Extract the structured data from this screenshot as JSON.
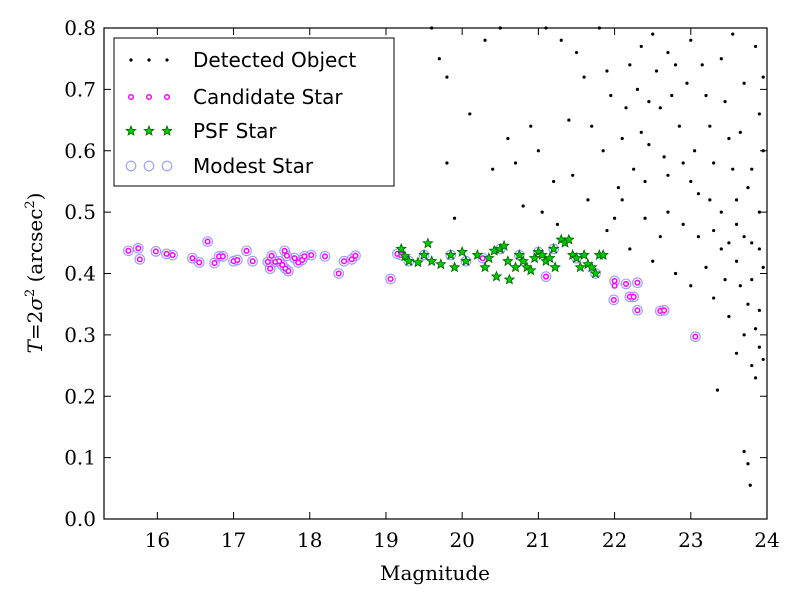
{
  "chart_data": {
    "type": "scatter",
    "xlabel": "Magnitude",
    "ylabel": "T = 2σ² (arcsec²)",
    "ylabel_parts": {
      "var": "T",
      "eq": "=2",
      "sigma": "σ",
      "sup": "2",
      "unit": " (arcsec",
      "unit_sup": "2",
      "close": ")"
    },
    "xlim": [
      15.3,
      24
    ],
    "ylim": [
      0.0,
      0.8
    ],
    "xticks": [
      16,
      17,
      18,
      19,
      20,
      21,
      22,
      23,
      24
    ],
    "yticks": [
      0.0,
      0.1,
      0.2,
      0.3,
      0.4,
      0.5,
      0.6,
      0.7,
      0.8
    ],
    "xtick_labels": [
      "16",
      "17",
      "18",
      "19",
      "20",
      "21",
      "22",
      "23",
      "24"
    ],
    "ytick_labels": [
      "0.0",
      "0.1",
      "0.2",
      "0.3",
      "0.4",
      "0.5",
      "0.6",
      "0.7",
      "0.8"
    ],
    "grid": false,
    "legend_position": "top-left",
    "colors": {
      "detected": "#000000",
      "candidate_edge": "#ff00ff",
      "psf_fill": "#00cc00",
      "psf_edge": "#006400",
      "modest_edge": "#9999ff"
    },
    "series": [
      {
        "name": "Detected Object",
        "marker": "dot",
        "generated_description": "Dense cloud of faint objects",
        "points": [
          [
            19.7,
            0.75
          ],
          [
            19.8,
            0.72
          ],
          [
            20.5,
            0.8
          ],
          [
            20.6,
            0.62
          ],
          [
            20.9,
            0.64
          ],
          [
            21.1,
            0.8
          ],
          [
            21.3,
            0.78
          ],
          [
            21.5,
            0.76
          ],
          [
            21.0,
            0.6
          ],
          [
            20.7,
            0.58
          ],
          [
            21.4,
            0.65
          ],
          [
            21.6,
            0.72
          ],
          [
            21.2,
            0.55
          ],
          [
            20.8,
            0.51
          ],
          [
            21.8,
            0.8
          ],
          [
            21.9,
            0.73
          ],
          [
            22.1,
            0.62
          ],
          [
            22.3,
            0.7
          ],
          [
            22.5,
            0.79
          ],
          [
            22.4,
            0.55
          ],
          [
            22.0,
            0.49
          ],
          [
            22.6,
            0.67
          ],
          [
            22.8,
            0.74
          ],
          [
            23.0,
            0.78
          ],
          [
            23.2,
            0.69
          ],
          [
            23.4,
            0.75
          ],
          [
            23.5,
            0.62
          ],
          [
            23.7,
            0.71
          ],
          [
            23.9,
            0.66
          ],
          [
            22.7,
            0.5
          ],
          [
            22.9,
            0.58
          ],
          [
            23.1,
            0.53
          ],
          [
            23.3,
            0.47
          ],
          [
            23.6,
            0.52
          ],
          [
            23.8,
            0.45
          ],
          [
            23.95,
            0.41
          ],
          [
            22.2,
            0.44
          ],
          [
            22.5,
            0.42
          ],
          [
            22.8,
            0.4
          ],
          [
            23.0,
            0.38
          ],
          [
            23.3,
            0.36
          ],
          [
            23.5,
            0.33
          ],
          [
            23.7,
            0.3
          ],
          [
            23.9,
            0.28
          ],
          [
            23.85,
            0.23
          ],
          [
            23.75,
            0.35
          ],
          [
            23.6,
            0.42
          ],
          [
            23.4,
            0.44
          ],
          [
            23.2,
            0.41
          ],
          [
            23.9,
            0.5
          ],
          [
            23.8,
            0.57
          ],
          [
            23.65,
            0.63
          ],
          [
            23.45,
            0.68
          ],
          [
            23.25,
            0.64
          ],
          [
            23.05,
            0.6
          ],
          [
            22.85,
            0.64
          ],
          [
            22.65,
            0.59
          ],
          [
            22.45,
            0.61
          ],
          [
            22.25,
            0.57
          ],
          [
            22.05,
            0.54
          ],
          [
            21.85,
            0.6
          ],
          [
            21.65,
            0.52
          ],
          [
            21.45,
            0.56
          ],
          [
            21.25,
            0.48
          ],
          [
            21.05,
            0.5
          ],
          [
            23.35,
            0.21
          ],
          [
            23.7,
            0.11
          ],
          [
            23.75,
            0.09
          ],
          [
            23.78,
            0.055
          ],
          [
            19.8,
            0.58
          ],
          [
            19.9,
            0.49
          ],
          [
            20.4,
            0.57
          ],
          [
            19.6,
            0.8
          ],
          [
            20.3,
            0.78
          ],
          [
            20.1,
            0.66
          ],
          [
            22.35,
            0.77
          ],
          [
            22.55,
            0.73
          ],
          [
            22.75,
            0.69
          ],
          [
            22.95,
            0.71
          ],
          [
            23.15,
            0.74
          ],
          [
            23.55,
            0.79
          ],
          [
            23.85,
            0.77
          ],
          [
            23.95,
            0.72
          ],
          [
            22.15,
            0.67
          ],
          [
            22.35,
            0.63
          ],
          [
            22.6,
            0.46
          ],
          [
            22.9,
            0.48
          ],
          [
            23.1,
            0.46
          ],
          [
            23.4,
            0.5
          ],
          [
            23.6,
            0.48
          ],
          [
            23.8,
            0.39
          ],
          [
            23.9,
            0.34
          ],
          [
            23.65,
            0.38
          ],
          [
            23.45,
            0.39
          ],
          [
            23.55,
            0.57
          ],
          [
            23.75,
            0.54
          ],
          [
            23.95,
            0.6
          ],
          [
            23.3,
            0.58
          ],
          [
            23.0,
            0.55
          ],
          [
            22.7,
            0.56
          ],
          [
            22.4,
            0.49
          ],
          [
            22.1,
            0.52
          ],
          [
            21.9,
            0.47
          ],
          [
            21.7,
            0.64
          ],
          [
            21.95,
            0.69
          ],
          [
            22.2,
            0.74
          ],
          [
            22.45,
            0.68
          ],
          [
            22.7,
            0.76
          ],
          [
            23.25,
            0.52
          ],
          [
            23.5,
            0.45
          ],
          [
            23.7,
            0.46
          ],
          [
            23.9,
            0.44
          ],
          [
            23.85,
            0.31
          ],
          [
            23.95,
            0.26
          ],
          [
            23.6,
            0.27
          ],
          [
            23.8,
            0.25
          ]
        ]
      },
      {
        "name": "Candidate Star",
        "marker": "small-circle",
        "generated_description": "Stellar locus at T ≈ 0.42",
        "points": [
          [
            15.62,
            0.437
          ],
          [
            15.75,
            0.441
          ],
          [
            15.77,
            0.423
          ],
          [
            15.98,
            0.436
          ],
          [
            16.12,
            0.432
          ],
          [
            16.2,
            0.43
          ],
          [
            16.46,
            0.425
          ],
          [
            16.55,
            0.418
          ],
          [
            16.66,
            0.452
          ],
          [
            16.75,
            0.417
          ],
          [
            16.81,
            0.428
          ],
          [
            16.86,
            0.428
          ],
          [
            17.0,
            0.42
          ],
          [
            17.05,
            0.422
          ],
          [
            17.17,
            0.437
          ],
          [
            17.25,
            0.42
          ],
          [
            17.45,
            0.419
          ],
          [
            17.48,
            0.408
          ],
          [
            17.5,
            0.429
          ],
          [
            17.55,
            0.419
          ],
          [
            17.6,
            0.42
          ],
          [
            17.64,
            0.414
          ],
          [
            17.67,
            0.437
          ],
          [
            17.7,
            0.429
          ],
          [
            17.68,
            0.408
          ],
          [
            17.72,
            0.404
          ],
          [
            17.8,
            0.425
          ],
          [
            17.85,
            0.418
          ],
          [
            17.9,
            0.422
          ],
          [
            17.93,
            0.428
          ],
          [
            18.02,
            0.43
          ],
          [
            18.2,
            0.428
          ],
          [
            18.38,
            0.4
          ],
          [
            18.45,
            0.42
          ],
          [
            18.55,
            0.423
          ],
          [
            18.6,
            0.429
          ],
          [
            19.06,
            0.391
          ],
          [
            19.15,
            0.432
          ],
          [
            19.2,
            0.43
          ],
          [
            20.27,
            0.425
          ],
          [
            21.1,
            0.395
          ],
          [
            22.0,
            0.388
          ],
          [
            21.99,
            0.357
          ],
          [
            22.15,
            0.383
          ],
          [
            22.2,
            0.362
          ],
          [
            22.25,
            0.362
          ],
          [
            22.3,
            0.385
          ],
          [
            22.3,
            0.34
          ],
          [
            22.6,
            0.339
          ],
          [
            22.65,
            0.34
          ],
          [
            23.06,
            0.297
          ],
          [
            22.0,
            0.38
          ]
        ]
      },
      {
        "name": "PSF Star",
        "marker": "star",
        "generated_description": "Selected PSF stars between mag 19 and 22",
        "points": [
          [
            19.2,
            0.44
          ],
          [
            19.25,
            0.428
          ],
          [
            19.3,
            0.42
          ],
          [
            19.42,
            0.418
          ],
          [
            19.5,
            0.43
          ],
          [
            19.55,
            0.449
          ],
          [
            19.6,
            0.42
          ],
          [
            19.72,
            0.415
          ],
          [
            19.85,
            0.43
          ],
          [
            19.9,
            0.41
          ],
          [
            20.0,
            0.435
          ],
          [
            20.05,
            0.42
          ],
          [
            20.2,
            0.43
          ],
          [
            20.3,
            0.41
          ],
          [
            20.35,
            0.425
          ],
          [
            20.42,
            0.437
          ],
          [
            20.45,
            0.395
          ],
          [
            20.5,
            0.44
          ],
          [
            20.55,
            0.445
          ],
          [
            20.6,
            0.42
          ],
          [
            20.62,
            0.39
          ],
          [
            20.7,
            0.41
          ],
          [
            20.75,
            0.43
          ],
          [
            20.8,
            0.42
          ],
          [
            20.85,
            0.41
          ],
          [
            20.9,
            0.405
          ],
          [
            20.95,
            0.425
          ],
          [
            21.0,
            0.435
          ],
          [
            21.05,
            0.43
          ],
          [
            21.1,
            0.42
          ],
          [
            21.15,
            0.425
          ],
          [
            21.2,
            0.44
          ],
          [
            21.22,
            0.41
          ],
          [
            21.3,
            0.455
          ],
          [
            21.35,
            0.45
          ],
          [
            21.4,
            0.455
          ],
          [
            21.45,
            0.43
          ],
          [
            21.5,
            0.425
          ],
          [
            21.55,
            0.41
          ],
          [
            21.6,
            0.43
          ],
          [
            21.65,
            0.415
          ],
          [
            21.7,
            0.41
          ],
          [
            21.75,
            0.4
          ],
          [
            21.8,
            0.43
          ],
          [
            21.85,
            0.43
          ]
        ]
      },
      {
        "name": "Modest Star",
        "marker": "circle",
        "generated_description": "Modest-class stars across magnitude range",
        "points": [
          [
            15.62,
            0.437
          ],
          [
            15.75,
            0.441
          ],
          [
            15.77,
            0.423
          ],
          [
            15.98,
            0.436
          ],
          [
            16.12,
            0.432
          ],
          [
            16.2,
            0.43
          ],
          [
            16.46,
            0.425
          ],
          [
            16.55,
            0.418
          ],
          [
            16.66,
            0.452
          ],
          [
            16.75,
            0.417
          ],
          [
            16.81,
            0.428
          ],
          [
            16.86,
            0.428
          ],
          [
            17.0,
            0.42
          ],
          [
            17.05,
            0.422
          ],
          [
            17.17,
            0.437
          ],
          [
            17.25,
            0.42
          ],
          [
            17.45,
            0.419
          ],
          [
            17.48,
            0.408
          ],
          [
            17.5,
            0.429
          ],
          [
            17.55,
            0.419
          ],
          [
            17.6,
            0.42
          ],
          [
            17.64,
            0.414
          ],
          [
            17.67,
            0.437
          ],
          [
            17.7,
            0.429
          ],
          [
            17.68,
            0.408
          ],
          [
            17.72,
            0.404
          ],
          [
            17.8,
            0.425
          ],
          [
            17.85,
            0.418
          ],
          [
            17.9,
            0.422
          ],
          [
            17.93,
            0.428
          ],
          [
            18.02,
            0.43
          ],
          [
            18.2,
            0.428
          ],
          [
            18.38,
            0.4
          ],
          [
            18.45,
            0.42
          ],
          [
            18.55,
            0.423
          ],
          [
            18.6,
            0.429
          ],
          [
            19.06,
            0.391
          ],
          [
            19.15,
            0.432
          ],
          [
            19.2,
            0.43
          ],
          [
            19.3,
            0.42
          ],
          [
            19.5,
            0.43
          ],
          [
            19.85,
            0.43
          ],
          [
            20.05,
            0.42
          ],
          [
            20.27,
            0.425
          ],
          [
            20.5,
            0.44
          ],
          [
            20.75,
            0.43
          ],
          [
            21.0,
            0.435
          ],
          [
            21.1,
            0.395
          ],
          [
            21.2,
            0.44
          ],
          [
            21.5,
            0.425
          ],
          [
            21.75,
            0.4
          ],
          [
            22.0,
            0.388
          ],
          [
            21.99,
            0.357
          ],
          [
            22.15,
            0.383
          ],
          [
            22.2,
            0.362
          ],
          [
            22.25,
            0.362
          ],
          [
            22.3,
            0.385
          ],
          [
            22.3,
            0.34
          ],
          [
            22.6,
            0.339
          ],
          [
            22.65,
            0.34
          ],
          [
            23.06,
            0.297
          ]
        ]
      }
    ]
  }
}
